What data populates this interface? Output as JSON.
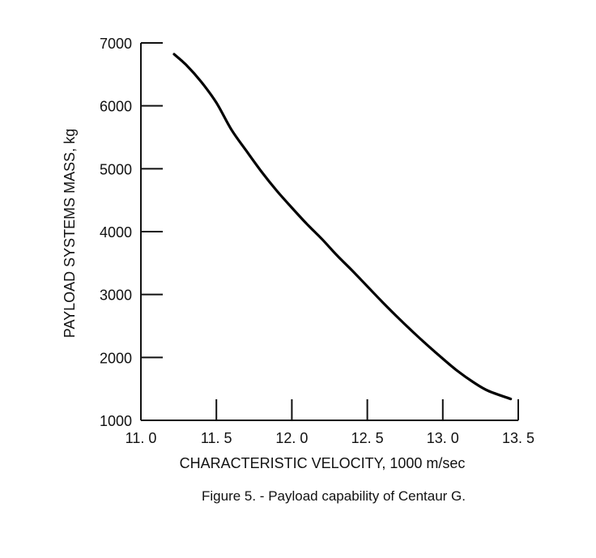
{
  "chart_data": {
    "type": "line",
    "title": "",
    "caption": "Figure 5.  - Payload capability of Centaur G.",
    "xlabel": "CHARACTERISTIC VELOCITY, 1000 m/sec",
    "ylabel": "PAYLOAD SYSTEMS MASS, kg",
    "xlim": [
      11.0,
      13.5
    ],
    "ylim": [
      1000,
      7000
    ],
    "x_ticks": [
      11.0,
      11.5,
      12.0,
      12.5,
      13.0,
      13.5
    ],
    "x_tick_labels": [
      "11. 0",
      "11. 5",
      "12. 0",
      "12. 5",
      "13. 0",
      "13. 5"
    ],
    "y_ticks": [
      1000,
      2000,
      3000,
      4000,
      5000,
      6000,
      7000
    ],
    "y_tick_labels": [
      "1000",
      "2000",
      "3000",
      "4000",
      "5000",
      "6000",
      "7000"
    ],
    "grid": false,
    "legend": "none",
    "line_color": "#000000",
    "series": [
      {
        "name": "",
        "x": [
          11.22,
          11.3,
          11.4,
          11.5,
          11.6,
          11.7,
          11.8,
          11.9,
          12.0,
          12.1,
          12.2,
          12.3,
          12.4,
          12.5,
          12.6,
          12.7,
          12.8,
          12.9,
          13.0,
          13.1,
          13.2,
          13.3,
          13.45
        ],
        "y": [
          6820,
          6650,
          6380,
          6050,
          5620,
          5280,
          4950,
          4650,
          4380,
          4120,
          3880,
          3620,
          3380,
          3130,
          2880,
          2640,
          2410,
          2190,
          1980,
          1780,
          1610,
          1470,
          1340
        ]
      }
    ]
  }
}
